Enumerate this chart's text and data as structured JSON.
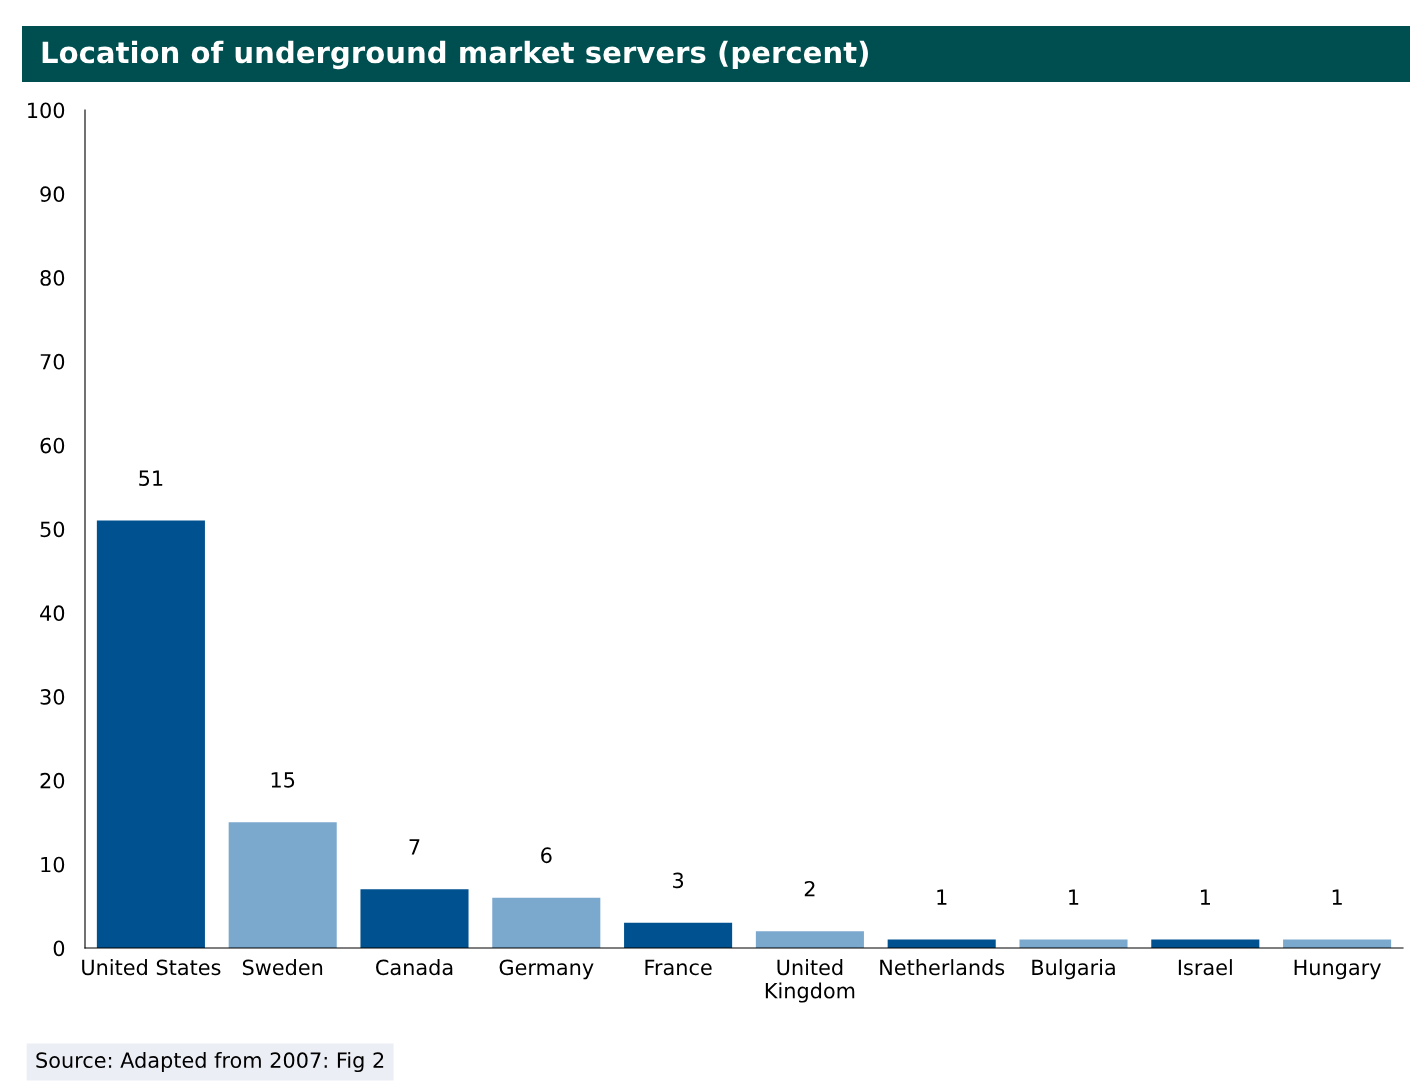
{
  "chart_data": {
    "type": "bar",
    "title": "Location of underground market servers (percent)",
    "categories": [
      "United States",
      "Sweden",
      "Canada",
      "Germany",
      "France",
      "United\nKingdom",
      "Netherlands",
      "Bulgaria",
      "Israel",
      "Hungary"
    ],
    "values": [
      51,
      15,
      7,
      6,
      3,
      2,
      1,
      1,
      1,
      1
    ],
    "colors": [
      "#00518f",
      "#7ba9ce",
      "#00518f",
      "#7ba9ce",
      "#00518f",
      "#7ba9ce",
      "#00518f",
      "#7ba9ce",
      "#00518f",
      "#7ba9ce"
    ],
    "ylim": [
      0,
      100
    ],
    "yticks": [
      0,
      10,
      20,
      30,
      40,
      50,
      60,
      70,
      80,
      90,
      100
    ],
    "grid": false,
    "data_labels": true,
    "annotations": [
      "Source: Adapted from 2007: Fig 2"
    ]
  }
}
